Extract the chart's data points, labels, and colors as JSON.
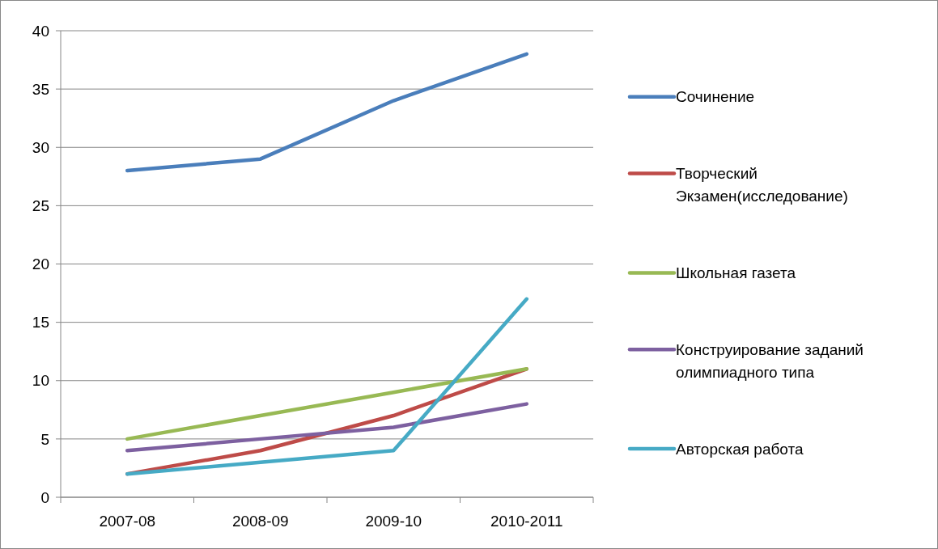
{
  "chart_data": {
    "type": "line",
    "categories": [
      "2007-08",
      "2008-09",
      "2009-10",
      "2010-2011"
    ],
    "series": [
      {
        "name": "Сочинение",
        "color": "#4a7ebb",
        "values": [
          28,
          29,
          34,
          38
        ]
      },
      {
        "name": "Творческий Экзамен(исследование)",
        "color": "#be4b48",
        "values": [
          2,
          4,
          7,
          11
        ]
      },
      {
        "name": "Школьная газета",
        "color": "#98b954",
        "values": [
          5,
          7,
          9,
          11
        ]
      },
      {
        "name": "Конструирование заданий олимпиадного типа",
        "color": "#7d60a0",
        "values": [
          4,
          5,
          6,
          8
        ]
      },
      {
        "name": "Авторская работа",
        "color": "#46aac5",
        "values": [
          2,
          3,
          4,
          17
        ]
      }
    ],
    "ylim": [
      0,
      40
    ],
    "yticks": [
      0,
      5,
      10,
      15,
      20,
      25,
      30,
      35,
      40
    ],
    "grid": "y",
    "legend": "right",
    "marker": "none",
    "line_style": "solid"
  }
}
